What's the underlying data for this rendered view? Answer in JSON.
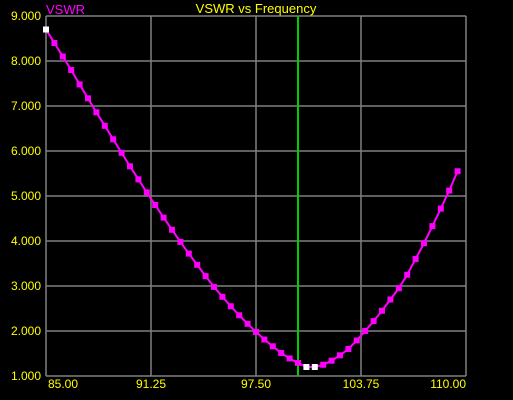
{
  "chart_data": {
    "type": "line",
    "title": "VSWR vs Frequency",
    "ylabel": "VSWR",
    "xlabel": "",
    "xlim": [
      85.0,
      110.0
    ],
    "ylim": [
      1.0,
      9.0
    ],
    "x_ticks": [
      "85.00",
      "91.25",
      "97.50",
      "103.75",
      "110.00"
    ],
    "y_ticks": [
      "1.000",
      "2.000",
      "3.000",
      "4.000",
      "5.000",
      "6.000",
      "7.000",
      "8.000",
      "9.000"
    ],
    "grid": true,
    "marker_line_x": 100.0,
    "series": [
      {
        "values": [
          {
            "x": 85.0,
            "y": 8.7
          },
          {
            "x": 85.5,
            "y": 8.4
          },
          {
            "x": 86.0,
            "y": 8.1
          },
          {
            "x": 86.5,
            "y": 7.8
          },
          {
            "x": 87.0,
            "y": 7.48
          },
          {
            "x": 87.5,
            "y": 7.17
          },
          {
            "x": 88.0,
            "y": 6.86
          },
          {
            "x": 88.5,
            "y": 6.56
          },
          {
            "x": 89.0,
            "y": 6.26
          },
          {
            "x": 89.5,
            "y": 5.96
          },
          {
            "x": 90.0,
            "y": 5.66
          },
          {
            "x": 90.5,
            "y": 5.37
          },
          {
            "x": 91.0,
            "y": 5.08
          },
          {
            "x": 91.5,
            "y": 4.8
          },
          {
            "x": 92.0,
            "y": 4.52
          },
          {
            "x": 92.5,
            "y": 4.25
          },
          {
            "x": 93.0,
            "y": 3.98
          },
          {
            "x": 93.5,
            "y": 3.72
          },
          {
            "x": 94.0,
            "y": 3.47
          },
          {
            "x": 94.5,
            "y": 3.22
          },
          {
            "x": 95.0,
            "y": 2.98
          },
          {
            "x": 95.5,
            "y": 2.76
          },
          {
            "x": 96.0,
            "y": 2.55
          },
          {
            "x": 96.5,
            "y": 2.35
          },
          {
            "x": 97.0,
            "y": 2.16
          },
          {
            "x": 97.5,
            "y": 1.98
          },
          {
            "x": 98.0,
            "y": 1.81
          },
          {
            "x": 98.5,
            "y": 1.66
          },
          {
            "x": 99.0,
            "y": 1.51
          },
          {
            "x": 99.5,
            "y": 1.39
          },
          {
            "x": 100.0,
            "y": 1.29
          },
          {
            "x": 100.5,
            "y": 1.2
          },
          {
            "x": 101.0,
            "y": 1.2
          },
          {
            "x": 101.5,
            "y": 1.25
          },
          {
            "x": 102.0,
            "y": 1.34
          },
          {
            "x": 102.5,
            "y": 1.46
          },
          {
            "x": 103.0,
            "y": 1.6
          },
          {
            "x": 103.5,
            "y": 1.79
          },
          {
            "x": 104.0,
            "y": 2.0
          },
          {
            "x": 104.5,
            "y": 2.22
          },
          {
            "x": 105.0,
            "y": 2.45
          },
          {
            "x": 105.5,
            "y": 2.7
          },
          {
            "x": 106.0,
            "y": 2.95
          },
          {
            "x": 106.5,
            "y": 3.25
          },
          {
            "x": 107.0,
            "y": 3.6
          },
          {
            "x": 107.5,
            "y": 3.95
          },
          {
            "x": 108.0,
            "y": 4.33
          },
          {
            "x": 108.5,
            "y": 4.72
          },
          {
            "x": 109.0,
            "y": 5.12
          },
          {
            "x": 109.5,
            "y": 5.55
          }
        ],
        "highlighted_points": [
          {
            "x": 85.0,
            "y": 8.7
          },
          {
            "x": 100.5,
            "y": 1.2
          },
          {
            "x": 101.0,
            "y": 1.2
          }
        ]
      }
    ]
  },
  "colors": {
    "background": "#000000",
    "grid": "#808080",
    "axis_text": "#ffff00",
    "title": "#ffff00",
    "ylabel": "#ff00ff",
    "series": "#ff00ff",
    "marker_line": "#00cc00",
    "highlight_point": "#ffffff"
  }
}
